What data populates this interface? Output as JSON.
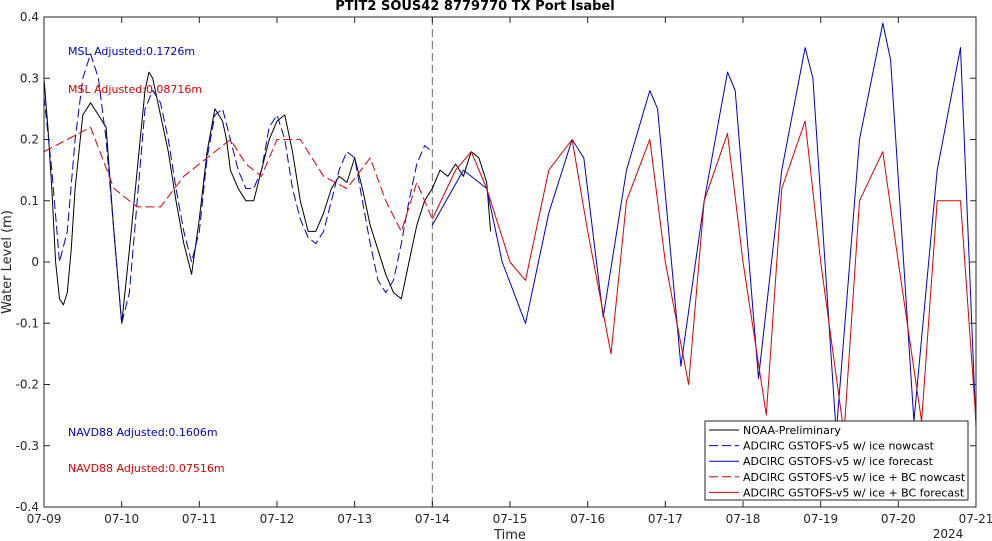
{
  "chart_data": {
    "type": "line",
    "title": "PTIT2 SOUS42 8779770 TX Port Isabel",
    "xlabel": "Time",
    "ylabel": "Water Level (m)",
    "x_ticks": [
      "07-09",
      "07-10",
      "07-11",
      "07-12",
      "07-13",
      "07-14",
      "07-15",
      "07-16",
      "07-17",
      "07-18",
      "07-19",
      "07-20",
      "07-21"
    ],
    "x_year_label": "2024",
    "xlim": [
      0,
      12
    ],
    "ylim": [
      -0.4,
      0.4
    ],
    "y_ticks": [
      "-0.4",
      "-0.3",
      "-0.2",
      "-0.1",
      "0",
      "0.1",
      "0.2",
      "0.3",
      "0.4"
    ],
    "vline_x": 5,
    "grid": false,
    "legend_position": "bottom-right",
    "annotations": [
      {
        "text": "MSL Adjusted:0.1726m",
        "color": "#0000cc"
      },
      {
        "text": "MSL Adjusted:0.08716m",
        "color": "#dd0000"
      },
      {
        "text": "NAVD88 Adjusted:0.1606m",
        "color": "#0000cc"
      },
      {
        "text": "NAVD88 Adjusted:0.07516m",
        "color": "#dd0000"
      }
    ],
    "series": [
      {
        "name": "NOAA-Preliminary",
        "color": "#000000",
        "dash": "solid",
        "x": [
          0,
          0.05,
          0.1,
          0.15,
          0.2,
          0.25,
          0.3,
          0.35,
          0.4,
          0.5,
          0.6,
          0.7,
          0.8,
          0.9,
          1.0,
          1.1,
          1.2,
          1.3,
          1.35,
          1.4,
          1.5,
          1.6,
          1.7,
          1.8,
          1.9,
          2.0,
          2.1,
          2.2,
          2.3,
          2.35,
          2.4,
          2.5,
          2.6,
          2.7,
          2.8,
          2.9,
          3.0,
          3.1,
          3.2,
          3.3,
          3.4,
          3.5,
          3.6,
          3.7,
          3.8,
          3.9,
          4.0,
          4.1,
          4.2,
          4.3,
          4.4,
          4.5,
          4.6,
          4.7,
          4.8,
          4.9,
          5.0,
          5.1,
          5.2,
          5.3,
          5.4,
          5.5,
          5.6,
          5.7,
          5.75
        ],
        "y": [
          0.3,
          0.22,
          0.12,
          0.0,
          -0.06,
          -0.07,
          -0.05,
          0.02,
          0.12,
          0.24,
          0.26,
          0.24,
          0.22,
          0.05,
          -0.1,
          0.02,
          0.15,
          0.28,
          0.31,
          0.3,
          0.24,
          0.18,
          0.1,
          0.03,
          -0.02,
          0.07,
          0.18,
          0.25,
          0.23,
          0.2,
          0.15,
          0.12,
          0.1,
          0.1,
          0.15,
          0.2,
          0.23,
          0.24,
          0.18,
          0.1,
          0.05,
          0.05,
          0.08,
          0.12,
          0.14,
          0.13,
          0.17,
          0.12,
          0.06,
          0.02,
          -0.02,
          -0.05,
          -0.06,
          0.0,
          0.06,
          0.1,
          0.12,
          0.15,
          0.14,
          0.16,
          0.14,
          0.18,
          0.17,
          0.13,
          0.05
        ]
      },
      {
        "name": "ADCIRC GSTOFS-v5 w/ ice nowcast",
        "color": "#0000cc",
        "dash": "dashed",
        "x": [
          0,
          0.1,
          0.2,
          0.3,
          0.4,
          0.5,
          0.6,
          0.7,
          0.8,
          0.9,
          1.0,
          1.1,
          1.2,
          1.3,
          1.4,
          1.5,
          1.6,
          1.7,
          1.8,
          1.9,
          2.0,
          2.1,
          2.2,
          2.3,
          2.4,
          2.5,
          2.6,
          2.7,
          2.8,
          2.9,
          3.0,
          3.1,
          3.2,
          3.3,
          3.4,
          3.5,
          3.6,
          3.7,
          3.8,
          3.9,
          4.0,
          4.1,
          4.2,
          4.3,
          4.4,
          4.5,
          4.6,
          4.7,
          4.8,
          4.9,
          5.0
        ],
        "y": [
          0.27,
          0.15,
          0.0,
          0.05,
          0.2,
          0.3,
          0.34,
          0.3,
          0.2,
          0.05,
          -0.1,
          -0.05,
          0.1,
          0.25,
          0.28,
          0.26,
          0.2,
          0.12,
          0.05,
          0.0,
          0.05,
          0.17,
          0.24,
          0.25,
          0.2,
          0.15,
          0.12,
          0.12,
          0.15,
          0.22,
          0.24,
          0.2,
          0.12,
          0.07,
          0.04,
          0.03,
          0.05,
          0.1,
          0.15,
          0.18,
          0.17,
          0.1,
          0.03,
          -0.03,
          -0.05,
          -0.03,
          0.03,
          0.1,
          0.16,
          0.19,
          0.18
        ]
      },
      {
        "name": "ADCIRC GSTOFS-v5 w/ ice forecast",
        "color": "#0000cc",
        "dash": "solid",
        "x": [
          5.0,
          5.4,
          5.7,
          5.9,
          6.2,
          6.5,
          6.8,
          6.95,
          7.2,
          7.5,
          7.8,
          7.9,
          8.2,
          8.5,
          8.8,
          8.9,
          9.2,
          9.5,
          9.8,
          9.9,
          10.2,
          10.5,
          10.8,
          10.9,
          11.2,
          11.5,
          11.8,
          12.0
        ],
        "y": [
          0.06,
          0.15,
          0.12,
          0.0,
          -0.1,
          0.08,
          0.2,
          0.17,
          -0.09,
          0.15,
          0.28,
          0.25,
          -0.17,
          0.1,
          0.31,
          0.28,
          -0.19,
          0.15,
          0.35,
          0.3,
          -0.28,
          0.2,
          0.39,
          0.33,
          -0.26,
          0.15,
          0.35,
          -0.27
        ]
      },
      {
        "name": "ADCIRC GSTOFS-v5 w/ ice + BC nowcast",
        "color": "#dd0000",
        "dash": "dashed",
        "x": [
          0,
          0.3,
          0.6,
          0.9,
          1.2,
          1.5,
          1.8,
          2.1,
          2.4,
          2.6,
          2.8,
          3.0,
          3.3,
          3.6,
          3.9,
          4.2,
          4.4,
          4.6,
          4.8,
          5.0
        ],
        "y": [
          0.18,
          0.2,
          0.22,
          0.12,
          0.09,
          0.09,
          0.14,
          0.17,
          0.2,
          0.16,
          0.14,
          0.2,
          0.2,
          0.14,
          0.12,
          0.17,
          0.1,
          0.05,
          0.13,
          0.07
        ]
      },
      {
        "name": "ADCIRC GSTOFS-v5 w/ ice + BC forecast",
        "color": "#dd0000",
        "dash": "solid",
        "x": [
          5.0,
          5.3,
          5.5,
          5.7,
          6.0,
          6.2,
          6.5,
          6.8,
          7.0,
          7.3,
          7.5,
          7.8,
          8.0,
          8.3,
          8.5,
          8.8,
          9.0,
          9.3,
          9.5,
          9.8,
          10.0,
          10.3,
          10.5,
          10.8,
          11.0,
          11.3,
          11.5,
          11.8,
          12.0
        ],
        "y": [
          0.07,
          0.15,
          0.18,
          0.12,
          0.0,
          -0.03,
          0.15,
          0.2,
          0.05,
          -0.15,
          0.1,
          0.2,
          0.0,
          -0.2,
          0.1,
          0.21,
          0.0,
          -0.25,
          0.12,
          0.23,
          0.0,
          -0.28,
          0.1,
          0.18,
          0.0,
          -0.26,
          0.1,
          0.1,
          -0.26
        ]
      }
    ]
  }
}
